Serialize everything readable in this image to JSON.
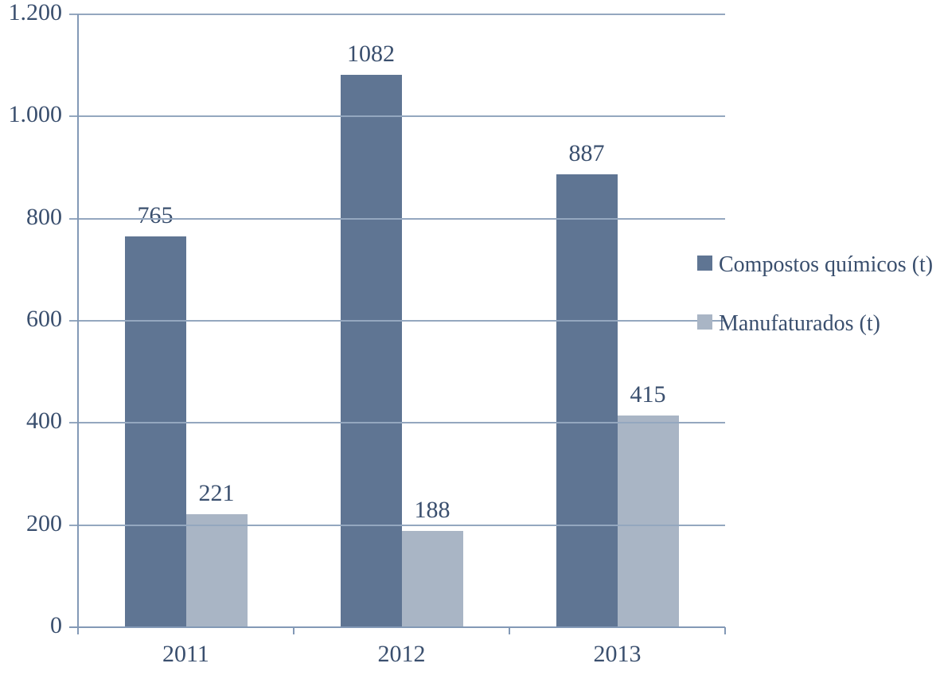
{
  "chart_data": {
    "type": "bar",
    "categories": [
      "2011",
      "2012",
      "2013"
    ],
    "series": [
      {
        "name": "Compostos químicos (t)",
        "color": "#5f7593",
        "values": [
          765,
          1082,
          887
        ]
      },
      {
        "name": "Manufaturados (t)",
        "color": "#a9b5c5",
        "values": [
          221,
          188,
          415
        ]
      }
    ],
    "value_labels": [
      [
        "765",
        "1082",
        "887"
      ],
      [
        "221",
        "188",
        "415"
      ]
    ],
    "ylim": [
      0,
      1200
    ],
    "y_tick_step": 200,
    "y_tick_labels": [
      "0",
      "200",
      "400",
      "600",
      "800",
      "1.000",
      "1.200"
    ],
    "grid": "horizontal",
    "legend_position": "right",
    "show_value_labels": true
  },
  "colors": {
    "text": "#3a4f6e",
    "gridline": "#94a7bf",
    "axis": "#8399b6",
    "background": "#ffffff"
  },
  "legend": {
    "items": [
      {
        "label": "Compostos químicos (t)",
        "swatch_color": "#5f7593",
        "swatch_name": "compostos-quimicos-swatch"
      },
      {
        "label": "Manufaturados (t)",
        "swatch_color": "#a9b5c5",
        "swatch_name": "manufaturados-swatch"
      }
    ]
  }
}
